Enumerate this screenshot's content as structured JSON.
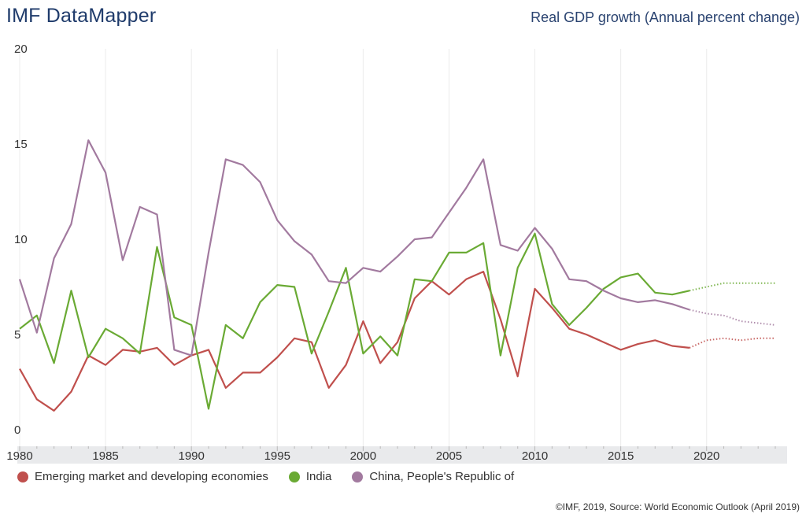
{
  "header": {
    "app_title": "IMF DataMapper",
    "chart_title": "Real GDP growth (Annual percent change)"
  },
  "footer": {
    "source": "©IMF, 2019, Source: World Economic Outlook (April 2019)"
  },
  "chart_data": {
    "type": "line",
    "title": "Real GDP growth (Annual percent change)",
    "xlabel": "",
    "ylabel": "",
    "xlim": [
      1980,
      2024
    ],
    "ylim": [
      0,
      20
    ],
    "y_ticks": [
      0,
      5,
      10,
      15,
      20
    ],
    "x_ticks": [
      1980,
      1985,
      1990,
      1995,
      2000,
      2005,
      2010,
      2015,
      2020
    ],
    "grid": "vertical lines at x ticks",
    "legend_position": "bottom-left",
    "projection_start": 2019,
    "projection_style": "dotted",
    "x": [
      1980,
      1981,
      1982,
      1983,
      1984,
      1985,
      1986,
      1987,
      1988,
      1989,
      1990,
      1991,
      1992,
      1993,
      1994,
      1995,
      1996,
      1997,
      1998,
      1999,
      2000,
      2001,
      2002,
      2003,
      2004,
      2005,
      2006,
      2007,
      2008,
      2009,
      2010,
      2011,
      2012,
      2013,
      2014,
      2015,
      2016,
      2017,
      2018,
      2019,
      2020,
      2021,
      2022,
      2023,
      2024
    ],
    "series": [
      {
        "name": "Emerging market and developing economies",
        "color": "#c0504d",
        "values": [
          3.2,
          1.6,
          1.0,
          2.0,
          3.9,
          3.4,
          4.2,
          4.1,
          4.3,
          3.4,
          3.9,
          4.2,
          2.2,
          3.0,
          3.0,
          3.8,
          4.8,
          4.6,
          2.2,
          3.4,
          5.7,
          3.5,
          4.6,
          6.9,
          7.8,
          7.1,
          7.9,
          8.3,
          5.8,
          2.8,
          7.4,
          6.4,
          5.3,
          5.0,
          4.6,
          4.2,
          4.5,
          4.7,
          4.4,
          4.3,
          4.7,
          4.8,
          4.7,
          4.8,
          4.8
        ]
      },
      {
        "name": "India",
        "color": "#6aaa34",
        "values": [
          5.3,
          6.0,
          3.5,
          7.3,
          3.8,
          5.3,
          4.8,
          4.0,
          9.6,
          5.9,
          5.5,
          1.1,
          5.5,
          4.8,
          6.7,
          7.6,
          7.5,
          4.0,
          6.2,
          8.5,
          4.0,
          4.9,
          3.9,
          7.9,
          7.8,
          9.3,
          9.3,
          9.8,
          3.9,
          8.5,
          10.3,
          6.6,
          5.5,
          6.4,
          7.4,
          8.0,
          8.2,
          7.2,
          7.1,
          7.3,
          7.5,
          7.7,
          7.7,
          7.7,
          7.7
        ]
      },
      {
        "name": "China, People's Republic of",
        "color": "#a27a9f",
        "values": [
          7.9,
          5.1,
          9.0,
          10.8,
          15.2,
          13.5,
          8.9,
          11.7,
          11.3,
          4.2,
          3.9,
          9.3,
          14.2,
          13.9,
          13.0,
          11.0,
          9.9,
          9.2,
          7.8,
          7.7,
          8.5,
          8.3,
          9.1,
          10.0,
          10.1,
          11.4,
          12.7,
          14.2,
          9.7,
          9.4,
          10.6,
          9.5,
          7.9,
          7.8,
          7.3,
          6.9,
          6.7,
          6.8,
          6.6,
          6.3,
          6.1,
          6.0,
          5.7,
          5.6,
          5.5
        ]
      }
    ]
  }
}
